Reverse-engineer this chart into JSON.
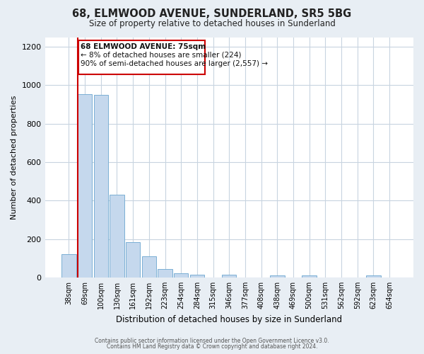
{
  "title": "68, ELMWOOD AVENUE, SUNDERLAND, SR5 5BG",
  "subtitle": "Size of property relative to detached houses in Sunderland",
  "xlabel": "Distribution of detached houses by size in Sunderland",
  "ylabel": "Number of detached properties",
  "bin_labels": [
    "38sqm",
    "69sqm",
    "100sqm",
    "130sqm",
    "161sqm",
    "192sqm",
    "223sqm",
    "254sqm",
    "284sqm",
    "315sqm",
    "346sqm",
    "377sqm",
    "408sqm",
    "438sqm",
    "469sqm",
    "500sqm",
    "531sqm",
    "562sqm",
    "592sqm",
    "623sqm",
    "654sqm"
  ],
  "bar_heights": [
    120,
    955,
    950,
    430,
    185,
    110,
    45,
    20,
    15,
    0,
    15,
    0,
    0,
    10,
    0,
    10,
    0,
    0,
    0,
    10,
    0
  ],
  "bar_color": "#c5d8ed",
  "bar_edge_color": "#7aafd4",
  "marker_line_color": "#cc0000",
  "annotation_box_color": "#cc0000",
  "annotation_text_line1": "68 ELMWOOD AVENUE: 75sqm",
  "annotation_text_line2": "← 8% of detached houses are smaller (224)",
  "annotation_text_line3": "90% of semi-detached houses are larger (2,557) →",
  "ylim": [
    0,
    1250
  ],
  "yticks": [
    0,
    200,
    400,
    600,
    800,
    1000,
    1200
  ],
  "footer_line1": "Contains HM Land Registry data © Crown copyright and database right 2024.",
  "footer_line2": "Contains public sector information licensed under the Open Government Licence v3.0.",
  "background_color": "#e8eef4",
  "plot_background_color": "#ffffff",
  "grid_color": "#c8d4e0"
}
